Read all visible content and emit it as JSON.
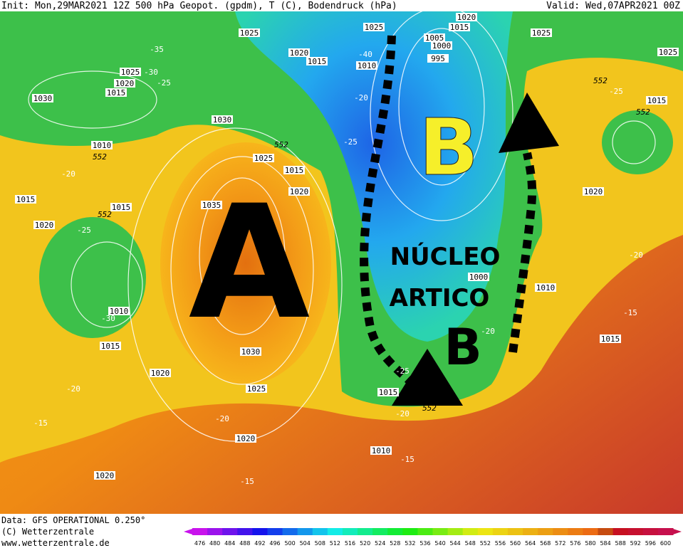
{
  "header": {
    "init": "Init: Mon,29MAR2021 12Z 500 hPa Geopot. (gpdm), T (C), Bodendruck (hPa)",
    "valid": "Valid: Wed,07APR2021 00Z"
  },
  "annotations": {
    "high": "A",
    "low_north": "B",
    "low_south": "B",
    "core_line1": "NÚCLEO",
    "core_line2": "ARTICO"
  },
  "isobar_labels": [
    "1025",
    "1020",
    "1015",
    "1010",
    "1005",
    "1000",
    "995",
    "1020",
    "1015",
    "1025",
    "1025",
    "1025",
    "1030",
    "1025",
    "1020",
    "1015",
    "1030",
    "1025",
    "1015",
    "1020",
    "1035",
    "1010",
    "1015",
    "1015",
    "1020",
    "1010",
    "1015",
    "1020",
    "1030",
    "1025",
    "1020",
    "1020",
    "1010",
    "1015",
    "1000",
    "1010",
    "1015",
    "1020",
    "1015"
  ],
  "temperature_labels": [
    "-35",
    "-30",
    "-25",
    "-40",
    "-20",
    "-25",
    "-20",
    "-25",
    "-20",
    "-15",
    "-25",
    "-20",
    "-25",
    "-20",
    "-20",
    "-15",
    "-20",
    "-15",
    "-15",
    "-30"
  ],
  "height_552_labels": [
    "552",
    "552",
    "552",
    "552",
    "552",
    "552"
  ],
  "footer": {
    "data": "Data: GFS OPERATIONAL 0.250°",
    "copyright": "(C) Wetterzentrale",
    "url": "www.wetterzentrale.de"
  },
  "colorbar": {
    "labels": [
      476,
      480,
      484,
      488,
      492,
      496,
      500,
      504,
      508,
      512,
      516,
      520,
      524,
      528,
      532,
      536,
      540,
      544,
      548,
      552,
      556,
      560,
      564,
      568,
      572,
      576,
      580,
      584,
      588,
      592,
      596,
      600
    ]
  }
}
